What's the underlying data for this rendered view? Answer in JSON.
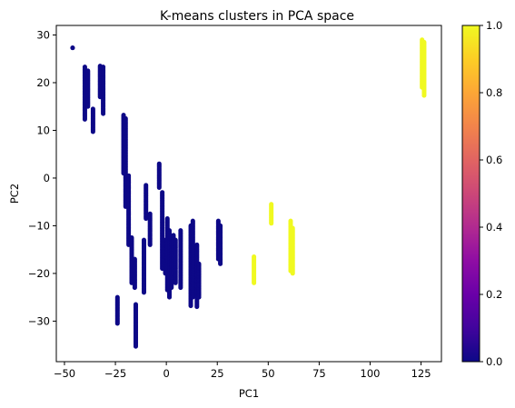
{
  "chart_data": {
    "type": "scatter",
    "title": "K-means clusters in PCA space",
    "xlabel": "PC1",
    "ylabel": "PC2",
    "xlim": [
      -54,
      135
    ],
    "ylim": [
      -38.5,
      32
    ],
    "x_ticks": [
      -50,
      -25,
      0,
      25,
      50,
      75,
      100,
      125
    ],
    "y_ticks": [
      30,
      20,
      10,
      0,
      -10,
      -20,
      -30
    ],
    "x_tick_labels": [
      "−50",
      "−25",
      "0",
      "25",
      "50",
      "75",
      "100",
      "125"
    ],
    "y_tick_labels": [
      "30",
      "20",
      "10",
      "0",
      "−10",
      "−20",
      "−30"
    ],
    "grid": false,
    "colormap": "plasma",
    "colorbar": {
      "range": [
        0.0,
        1.0
      ],
      "ticks": [
        0.0,
        0.2,
        0.4,
        0.6,
        0.8,
        1.0
      ],
      "tick_labels": [
        "0.0",
        "0.2",
        "0.4",
        "0.6",
        "0.8",
        "1.0"
      ]
    },
    "colors": {
      "cluster_0": "#0d0887",
      "cluster_1": "#f0f921"
    },
    "clusters": [
      {
        "cluster": 0,
        "color_value": 0,
        "segments": [
          {
            "x": -46,
            "y": [
              27.3,
              27.3
            ]
          },
          {
            "x": -40,
            "y": [
              12.3,
              23.3
            ]
          },
          {
            "x": -38.5,
            "y": [
              15.0,
              22.5
            ]
          },
          {
            "x": -36,
            "y": [
              9.7,
              14.5
            ]
          },
          {
            "x": -32.5,
            "y": [
              17.0,
              23.5
            ]
          },
          {
            "x": -31,
            "y": [
              13.5,
              23.3
            ]
          },
          {
            "x": -21,
            "y": [
              1.0,
              13.2
            ]
          },
          {
            "x": -20,
            "y": [
              -6.0,
              12.5
            ]
          },
          {
            "x": -18.5,
            "y": [
              -14.0,
              0.5
            ]
          },
          {
            "x": -17,
            "y": [
              -22.0,
              -12.5
            ]
          },
          {
            "x": -15.5,
            "y": [
              -23.0,
              -17.0
            ]
          },
          {
            "x": -24,
            "y": [
              -30.5,
              -25.0
            ]
          },
          {
            "x": -15,
            "y": [
              -35.3,
              -26.5
            ]
          },
          {
            "x": -11,
            "y": [
              -24.0,
              -13.0
            ]
          },
          {
            "x": -10,
            "y": [
              -8.5,
              -1.5
            ]
          },
          {
            "x": -8,
            "y": [
              -14.0,
              -7.5
            ]
          },
          {
            "x": -3.5,
            "y": [
              -2.0,
              3.0
            ]
          },
          {
            "x": -2,
            "y": [
              -19.0,
              -3.0
            ]
          },
          {
            "x": -0.5,
            "y": [
              -20.0,
              -13.0
            ]
          },
          {
            "x": 0.5,
            "y": [
              -23.5,
              -8.5
            ]
          },
          {
            "x": 1.5,
            "y": [
              -25.0,
              -11.0
            ]
          },
          {
            "x": 2.5,
            "y": [
              -23.0,
              -13.0
            ]
          },
          {
            "x": 3.5,
            "y": [
              -20.0,
              -12.0
            ]
          },
          {
            "x": 4.5,
            "y": [
              -22.0,
              -13.0
            ]
          },
          {
            "x": 7,
            "y": [
              -23.0,
              -11.0
            ]
          },
          {
            "x": 12,
            "y": [
              -26.8,
              -10.0
            ]
          },
          {
            "x": 13,
            "y": [
              -25.0,
              -9.0
            ]
          },
          {
            "x": 15,
            "y": [
              -27.0,
              -14.0
            ]
          },
          {
            "x": 16,
            "y": [
              -25.0,
              -18.0
            ]
          },
          {
            "x": 25.5,
            "y": [
              -17.0,
              -9.0
            ]
          },
          {
            "x": 26.5,
            "y": [
              -18.0,
              -10.0
            ]
          }
        ]
      },
      {
        "cluster": 1,
        "color_value": 1,
        "segments": [
          {
            "x": 43,
            "y": [
              -22.0,
              -16.5
            ]
          },
          {
            "x": 51.5,
            "y": [
              -9.5,
              -5.5
            ]
          },
          {
            "x": 61,
            "y": [
              -19.5,
              -9.0
            ]
          },
          {
            "x": 62,
            "y": [
              -20.0,
              -10.5
            ]
          },
          {
            "x": 125.5,
            "y": [
              19.0,
              29.0
            ]
          },
          {
            "x": 126.5,
            "y": [
              17.3,
              28.5
            ]
          }
        ]
      }
    ]
  }
}
